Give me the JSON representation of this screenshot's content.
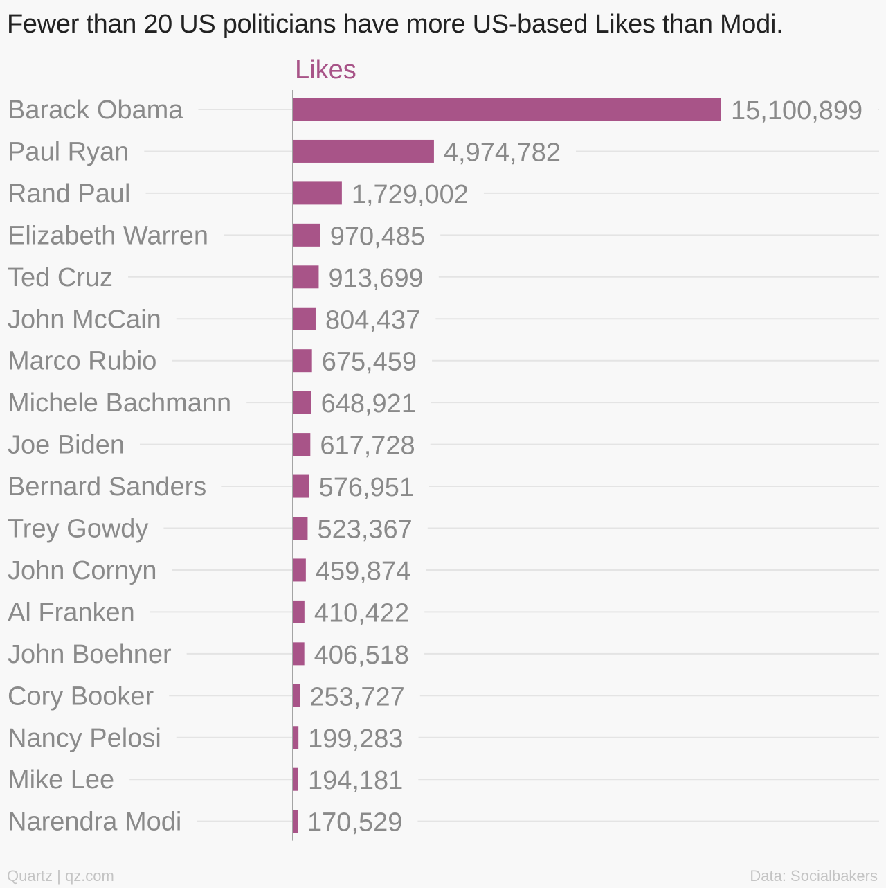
{
  "title": "Fewer than 20 US politicians have more US-based Likes than Modi.",
  "source_left": "Quartz | qz.com",
  "source_right": "Data: Socialbakers",
  "colors": {
    "bar": "#a85488",
    "series_label": "#a85488",
    "category_text": "#8a8a8a",
    "value_text": "#8a8a8a",
    "grid": "#e4e4e4",
    "axis": "#888888"
  },
  "chart_data": {
    "type": "bar",
    "orientation": "horizontal",
    "title": "Fewer than 20 US politicians have more US-based Likes than Modi.",
    "series": [
      {
        "name": "Likes",
        "values": [
          15100899,
          4974782,
          1729002,
          970485,
          913699,
          804437,
          675459,
          648921,
          617728,
          576951,
          523367,
          459874,
          410422,
          406518,
          253727,
          199283,
          194181,
          170529
        ]
      }
    ],
    "categories": [
      "Barack Obama",
      "Paul Ryan",
      "Rand Paul",
      "Elizabeth Warren",
      "Ted Cruz",
      "John McCain",
      "Marco Rubio",
      "Michele Bachmann",
      "Joe Biden",
      "Bernard Sanders",
      "Trey Gowdy",
      "John Cornyn",
      "Al Franken",
      "John Boehner",
      "Cory Booker",
      "Nancy Pelosi",
      "Mike Lee",
      "Narendra Modi"
    ],
    "value_labels": [
      "15,100,899",
      "4,974,782",
      "1,729,002",
      "970,485",
      "913,699",
      "804,437",
      "675,459",
      "648,921",
      "617,728",
      "576,951",
      "523,367",
      "459,874",
      "410,422",
      "406,518",
      "253,727",
      "199,283",
      "194,181",
      "170,529"
    ],
    "xlim": [
      0,
      15100899
    ],
    "grid": true,
    "legend": "top"
  }
}
